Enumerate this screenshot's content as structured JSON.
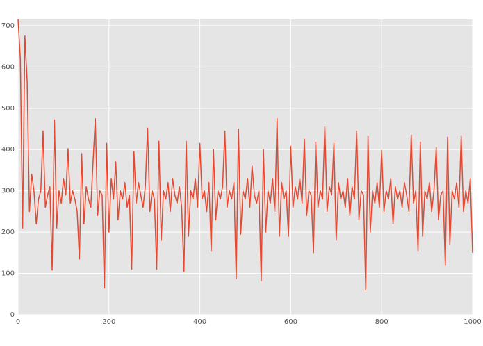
{
  "chart_data": {
    "type": "line",
    "color": "#e24a33",
    "grid": true,
    "xlim": [
      0,
      1000
    ],
    "xticks": [
      0,
      200,
      400,
      600,
      800,
      1000
    ],
    "ylim": [
      0,
      715
    ],
    "yticks": [
      0,
      100,
      200,
      300,
      400,
      500,
      600,
      700
    ],
    "x": [
      0,
      5,
      10,
      15,
      20,
      25,
      30,
      35,
      40,
      45,
      50,
      55,
      60,
      65,
      70,
      75,
      80,
      85,
      90,
      95,
      100,
      105,
      110,
      115,
      120,
      125,
      130,
      135,
      140,
      145,
      150,
      155,
      160,
      165,
      170,
      175,
      180,
      185,
      190,
      195,
      200,
      205,
      210,
      215,
      220,
      225,
      230,
      235,
      240,
      245,
      250,
      255,
      260,
      265,
      270,
      275,
      280,
      285,
      290,
      295,
      300,
      305,
      310,
      315,
      320,
      325,
      330,
      335,
      340,
      345,
      350,
      355,
      360,
      365,
      370,
      375,
      380,
      385,
      390,
      395,
      400,
      405,
      410,
      415,
      420,
      425,
      430,
      435,
      440,
      445,
      450,
      455,
      460,
      465,
      470,
      475,
      480,
      485,
      490,
      495,
      500,
      505,
      510,
      515,
      520,
      525,
      530,
      535,
      540,
      545,
      550,
      555,
      560,
      565,
      570,
      575,
      580,
      585,
      590,
      595,
      600,
      605,
      610,
      615,
      620,
      625,
      630,
      635,
      640,
      645,
      650,
      655,
      660,
      665,
      670,
      675,
      680,
      685,
      690,
      695,
      700,
      705,
      710,
      715,
      720,
      725,
      730,
      735,
      740,
      745,
      750,
      755,
      760,
      765,
      770,
      775,
      780,
      785,
      790,
      795,
      800,
      805,
      810,
      815,
      820,
      825,
      830,
      835,
      840,
      845,
      850,
      855,
      860,
      865,
      870,
      875,
      880,
      885,
      890,
      895,
      900,
      905,
      910,
      915,
      920,
      925,
      930,
      935,
      940,
      945,
      950,
      955,
      960,
      965,
      970,
      975,
      980,
      985,
      990,
      995,
      1000
    ],
    "values": [
      715,
      620,
      210,
      675,
      565,
      250,
      340,
      300,
      220,
      280,
      300,
      445,
      260,
      290,
      310,
      108,
      472,
      210,
      300,
      270,
      330,
      290,
      402,
      270,
      300,
      280,
      250,
      135,
      390,
      220,
      310,
      280,
      260,
      370,
      475,
      240,
      300,
      290,
      65,
      415,
      200,
      330,
      280,
      370,
      230,
      300,
      280,
      320,
      260,
      290,
      110,
      395,
      270,
      320,
      290,
      260,
      310,
      452,
      250,
      300,
      280,
      110,
      420,
      180,
      300,
      280,
      320,
      250,
      330,
      290,
      270,
      310,
      260,
      105,
      420,
      190,
      300,
      280,
      330,
      260,
      415,
      280,
      300,
      250,
      320,
      155,
      400,
      230,
      300,
      280,
      310,
      445,
      260,
      300,
      280,
      320,
      87,
      450,
      195,
      300,
      280,
      330,
      260,
      360,
      290,
      270,
      300,
      82,
      400,
      200,
      300,
      270,
      330,
      250,
      475,
      190,
      320,
      280,
      300,
      190,
      408,
      260,
      310,
      280,
      330,
      270,
      425,
      240,
      300,
      290,
      150,
      418,
      260,
      300,
      280,
      455,
      250,
      310,
      290,
      415,
      180,
      320,
      280,
      300,
      260,
      330,
      240,
      310,
      280,
      445,
      230,
      300,
      290,
      60,
      432,
      200,
      300,
      270,
      320,
      260,
      398,
      250,
      300,
      280,
      330,
      220,
      310,
      280,
      300,
      260,
      320,
      290,
      250,
      435,
      270,
      300,
      155,
      418,
      190,
      300,
      280,
      320,
      250,
      300,
      405,
      230,
      290,
      300,
      120,
      430,
      170,
      300,
      280,
      320,
      260,
      432,
      250,
      300,
      270,
      330,
      150
    ]
  }
}
